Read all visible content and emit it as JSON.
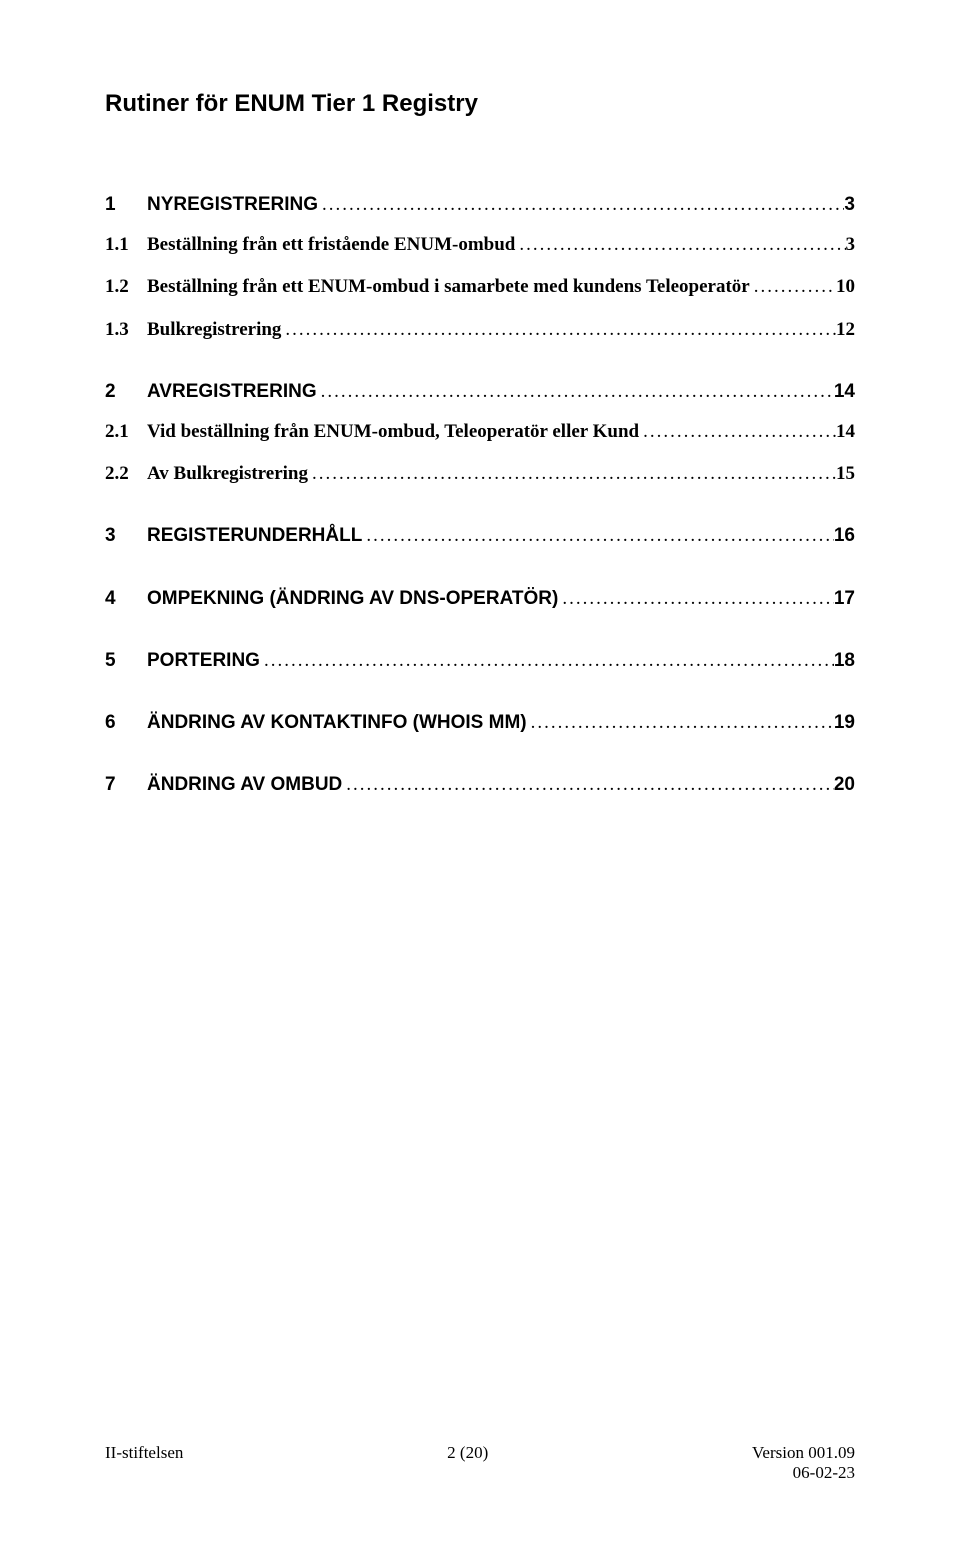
{
  "document": {
    "title": "Rutiner för ENUM Tier 1 Registry"
  },
  "toc": [
    {
      "level": 1,
      "num": "1",
      "label": "NYREGISTRERING",
      "page": "3"
    },
    {
      "level": 2,
      "num": "1.1",
      "label": "Beställning från ett fristående ENUM-ombud",
      "page": "3"
    },
    {
      "level": 2,
      "num": "1.2",
      "label": "Beställning från ett ENUM-ombud i samarbete med kundens Teleoperatör",
      "page": "10"
    },
    {
      "level": 2,
      "num": "1.3",
      "label": "Bulkregistrering",
      "page": "12"
    },
    {
      "level": 1,
      "num": "2",
      "label": "AVREGISTRERING",
      "page": "14"
    },
    {
      "level": 2,
      "num": "2.1",
      "label": "Vid beställning från ENUM-ombud, Teleoperatör eller Kund",
      "page": "14"
    },
    {
      "level": 2,
      "num": "2.2",
      "label": "Av Bulkregistrering",
      "page": "15"
    },
    {
      "level": 1,
      "num": "3",
      "label": "REGISTERUNDERHÅLL",
      "page": "16"
    },
    {
      "level": 1,
      "num": "4",
      "label": "OMPEKNING (ÄNDRING AV DNS-OPERATÖR)",
      "page": "17"
    },
    {
      "level": 1,
      "num": "5",
      "label": "PORTERING",
      "page": "18"
    },
    {
      "level": 1,
      "num": "6",
      "label": "ÄNDRING AV KONTAKTINFO (WHOIS MM)",
      "page": "19"
    },
    {
      "level": 1,
      "num": "7",
      "label": "ÄNDRING AV OMBUD",
      "page": "20"
    }
  ],
  "footer": {
    "left": "II-stiftelsen",
    "center": "2 (20)",
    "right_line1": "Version 001.09",
    "right_line2": "06-02-23"
  }
}
